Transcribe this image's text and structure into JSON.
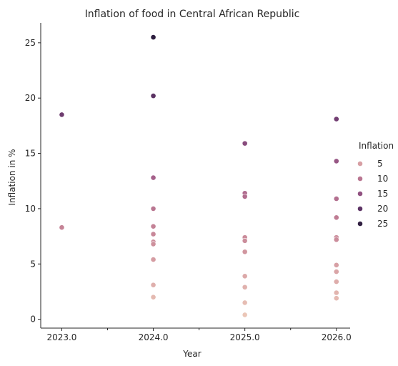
{
  "chart_data": {
    "type": "scatter",
    "title": "Inflation of food in Central African Republic",
    "xlabel": "Year",
    "ylabel": "Inflation in %",
    "xlim": [
      2022.77,
      2026.15
    ],
    "ylim": [
      -0.8,
      26.8
    ],
    "x_ticks": [
      2023.0,
      2024.0,
      2025.0,
      2026.0
    ],
    "x_tick_labels": [
      "2023.0",
      "2024.0",
      "2025.0",
      "2026.0"
    ],
    "x_minor_ticks": [
      2023.5,
      2024.5,
      2025.5
    ],
    "y_ticks": [
      0,
      5,
      10,
      15,
      20,
      25
    ],
    "y_tick_labels": [
      "0",
      "5",
      "10",
      "15",
      "20",
      "25"
    ],
    "grid": false,
    "legend": {
      "title": "Inflation",
      "placement": "right",
      "entries": [
        {
          "label": "5",
          "value": 5
        },
        {
          "label": "10",
          "value": 10
        },
        {
          "label": "15",
          "value": 15
        },
        {
          "label": "20",
          "value": 20
        },
        {
          "label": "25",
          "value": 25
        }
      ]
    },
    "hue_range": [
      0.4,
      25.5
    ],
    "colors": {
      "hue_low": "#efcfc0",
      "hue_high": "#2a1a3a",
      "stops": [
        "#ebc6b7",
        "#d9a3a6",
        "#c27f94",
        "#a45f8a",
        "#7d4478",
        "#4e2c5c",
        "#2d1e3e"
      ],
      "axis": "#262626"
    },
    "points": [
      {
        "x": 2023,
        "y": 18.5
      },
      {
        "x": 2023,
        "y": 8.3
      },
      {
        "x": 2024,
        "y": 25.5
      },
      {
        "x": 2024,
        "y": 20.2
      },
      {
        "x": 2024,
        "y": 12.8
      },
      {
        "x": 2024,
        "y": 10.0
      },
      {
        "x": 2024,
        "y": 8.4
      },
      {
        "x": 2024,
        "y": 7.7
      },
      {
        "x": 2024,
        "y": 7.0
      },
      {
        "x": 2024,
        "y": 6.8
      },
      {
        "x": 2024,
        "y": 5.4
      },
      {
        "x": 2024,
        "y": 3.1
      },
      {
        "x": 2024,
        "y": 2.0
      },
      {
        "x": 2025,
        "y": 15.9
      },
      {
        "x": 2025,
        "y": 11.4
      },
      {
        "x": 2025,
        "y": 11.1
      },
      {
        "x": 2025,
        "y": 7.4
      },
      {
        "x": 2025,
        "y": 7.1
      },
      {
        "x": 2025,
        "y": 6.1
      },
      {
        "x": 2025,
        "y": 3.9
      },
      {
        "x": 2025,
        "y": 2.9
      },
      {
        "x": 2025,
        "y": 1.5
      },
      {
        "x": 2025,
        "y": 0.4
      },
      {
        "x": 2026,
        "y": 18.1
      },
      {
        "x": 2026,
        "y": 14.3
      },
      {
        "x": 2026,
        "y": 10.9
      },
      {
        "x": 2026,
        "y": 9.2
      },
      {
        "x": 2026,
        "y": 7.4
      },
      {
        "x": 2026,
        "y": 7.2
      },
      {
        "x": 2026,
        "y": 4.9
      },
      {
        "x": 2026,
        "y": 4.3
      },
      {
        "x": 2026,
        "y": 3.4
      },
      {
        "x": 2026,
        "y": 2.4
      },
      {
        "x": 2026,
        "y": 1.9
      }
    ]
  }
}
